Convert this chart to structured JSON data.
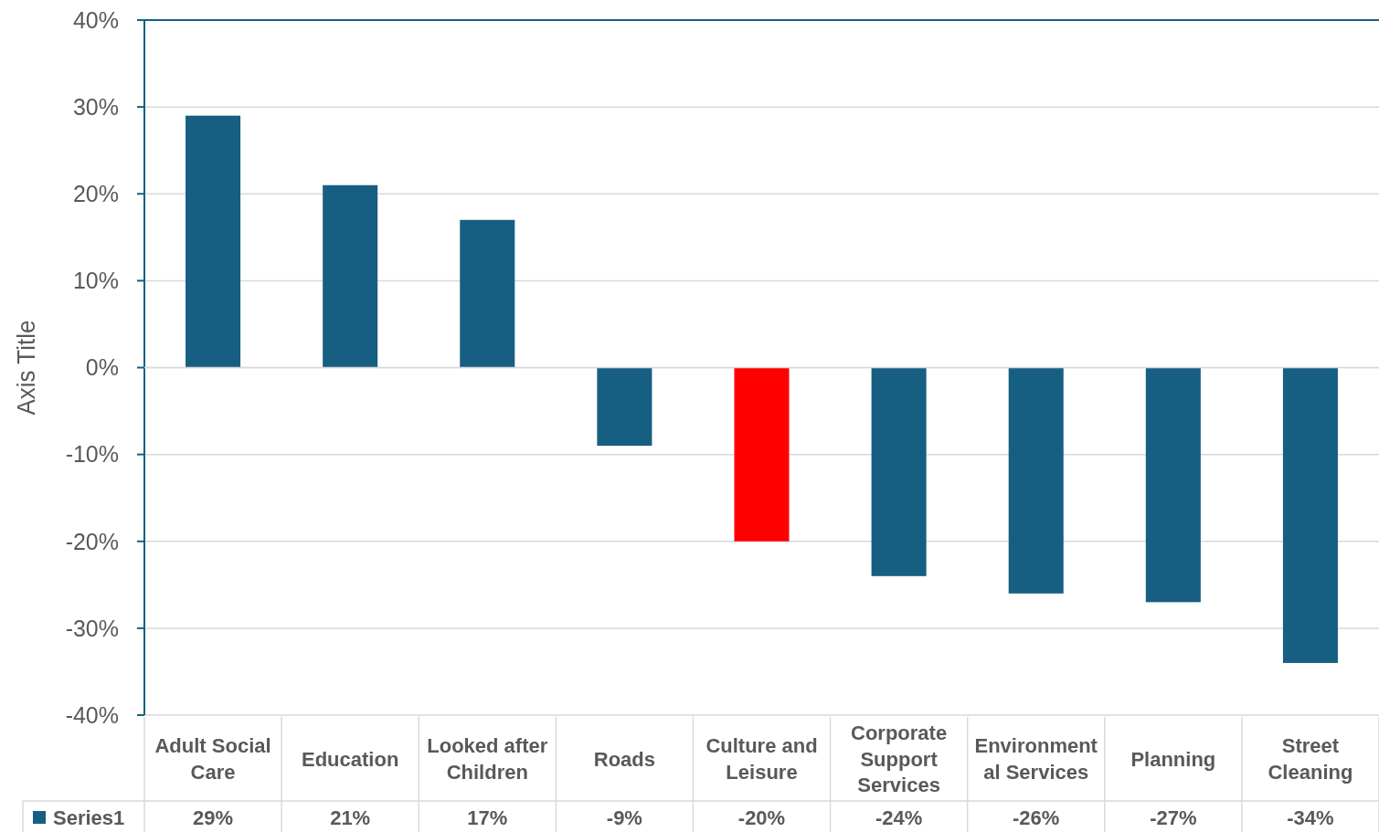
{
  "chart_data": {
    "type": "bar",
    "ylabel": "Axis Title",
    "categories": [
      "Adult Social Care",
      "Education",
      "Looked after Children",
      "Roads",
      "Culture and Leisure",
      "Corporate Support Services",
      "Environmental Services",
      "Planning",
      "Street Cleaning"
    ],
    "series": [
      {
        "name": "Series1",
        "color": "#175f82",
        "colors": [
          "#175f82",
          "#175f82",
          "#175f82",
          "#175f82",
          "#ff0000",
          "#175f82",
          "#175f82",
          "#175f82",
          "#175f82"
        ],
        "values": [
          29,
          21,
          17,
          -9,
          -20,
          -24,
          -26,
          -27,
          -34
        ],
        "value_labels": [
          "29%",
          "21%",
          "17%",
          "-9%",
          "-20%",
          "-24%",
          "-26%",
          "-27%",
          "-34%"
        ]
      }
    ],
    "ylim": [
      -40,
      40
    ],
    "yticks": [
      {
        "value": -40,
        "label": "-40%"
      },
      {
        "value": -30,
        "label": "-30%"
      },
      {
        "value": -20,
        "label": "-20%"
      },
      {
        "value": -10,
        "label": "-10%"
      },
      {
        "value": 0,
        "label": "0%"
      },
      {
        "value": 10,
        "label": "10%"
      },
      {
        "value": 20,
        "label": "20%"
      },
      {
        "value": 30,
        "label": "30%"
      },
      {
        "value": 40,
        "label": "40%"
      }
    ],
    "grid": "y",
    "legend": "bottom"
  }
}
